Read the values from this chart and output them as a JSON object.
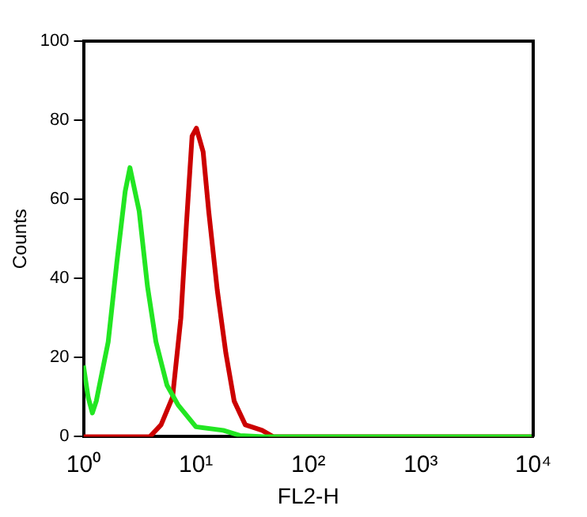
{
  "chart_data": {
    "type": "line",
    "xlabel": "FL2-H",
    "ylabel": "Counts",
    "log": "x",
    "xlim": [
      1,
      10000
    ],
    "xticks": [
      {
        "value": 1,
        "label": "10⁰"
      },
      {
        "value": 10,
        "label": "10¹"
      },
      {
        "value": 100,
        "label": "10²"
      },
      {
        "value": 1000,
        "label": "10³"
      },
      {
        "value": 10000,
        "label": "10⁴"
      }
    ],
    "ylim": [
      0,
      100
    ],
    "yticks": [
      0,
      20,
      40,
      60,
      80,
      100
    ],
    "grid": false,
    "legend": false,
    "marker": "none",
    "line_style": "solid",
    "series": [
      {
        "color": "#22e622",
        "x": [
          1,
          1.1,
          1.2,
          1.3,
          1.66,
          1.98,
          2.35,
          2.59,
          3.13,
          3.71,
          4.41,
          5.53,
          6.95,
          10,
          17.5,
          24.6,
          40,
          10000
        ],
        "values": [
          18,
          10,
          6,
          9,
          24,
          44,
          62,
          68,
          57,
          38,
          24,
          13,
          8,
          2.5,
          1.6,
          0.3,
          0,
          0
        ]
      },
      {
        "color": "#cc0000",
        "x": [
          1,
          3.9,
          4.9,
          6.2,
          7.35,
          8.25,
          9.25,
          10.1,
          11.6,
          13,
          15.5,
          18.5,
          21.9,
          27.5,
          38.8,
          48.6,
          10000
        ],
        "values": [
          0,
          0,
          3,
          10,
          30,
          54,
          76,
          78,
          72,
          57,
          37,
          21,
          9,
          3,
          1.6,
          0,
          0
        ]
      }
    ]
  }
}
